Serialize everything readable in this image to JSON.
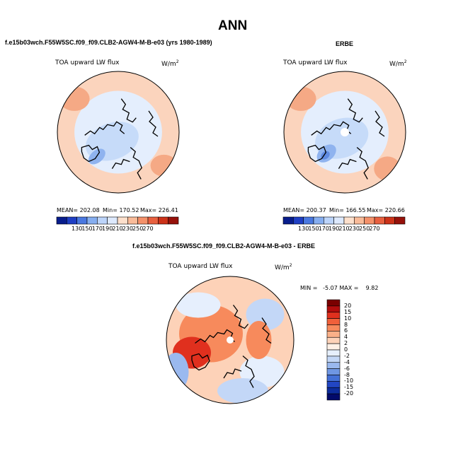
{
  "page_title": "ANN",
  "chart_data": [
    {
      "type": "heatmap",
      "projection": "north polar stereographic",
      "title": "f.e15b03wch.F55W5SC.f09_f09.CLB2-AGW4-M-B-e03 (yrs 1980-1989)",
      "field_label": "TOA upward LW flux",
      "units_label": "W/m",
      "units_superscript": "2",
      "stats": {
        "mean": "MEAN= 202.08",
        "min": "Min= 170.52",
        "max": "Max= 226.41"
      },
      "colorbar": {
        "ticks": [
          "130",
          "150",
          "170",
          "190",
          "210",
          "230",
          "250",
          "270"
        ],
        "colors": [
          "#081d8c",
          "#1f3fc4",
          "#4a78e0",
          "#86aef0",
          "#bcd4fa",
          "#dde9fd",
          "#fde0cc",
          "#f9bb99",
          "#f4916a",
          "#e8603f",
          "#cc3219",
          "#96110a"
        ]
      }
    },
    {
      "type": "heatmap",
      "projection": "north polar stereographic",
      "title": "ERBE",
      "field_label": "TOA upward LW flux",
      "units_label": "W/m",
      "units_superscript": "2",
      "stats": {
        "mean": "MEAN= 200.37",
        "min": "Min= 166.55",
        "max": "Max= 220.66"
      },
      "colorbar": {
        "ticks": [
          "130",
          "150",
          "170",
          "190",
          "210",
          "230",
          "250",
          "270"
        ],
        "colors": [
          "#081d8c",
          "#1f3fc4",
          "#4a78e0",
          "#86aef0",
          "#bcd4fa",
          "#dde9fd",
          "#fde0cc",
          "#f9bb99",
          "#f4916a",
          "#e8603f",
          "#cc3219",
          "#96110a"
        ]
      }
    },
    {
      "type": "heatmap",
      "projection": "north polar stereographic",
      "title": "f.e15b03wch.F55W5SC.f09_f09.CLB2-AGW4-M-B-e03 - ERBE",
      "field_label": "TOA upward LW flux",
      "units_label": "W/m",
      "units_superscript": "2",
      "stats": {
        "min_max": "MIN =   -5.07 MAX =    9.82"
      },
      "colorbar": {
        "orientation": "vertical",
        "ticks": [
          "20",
          "15",
          "10",
          "8",
          "6",
          "4",
          "2",
          "0",
          "-2",
          "-4",
          "-6",
          "-8",
          "-10",
          "-15",
          "-20"
        ],
        "colors": [
          "#7a0000",
          "#b30d0d",
          "#e0301e",
          "#f0603a",
          "#f78a5c",
          "#fab088",
          "#fdd2b8",
          "#fff0e6",
          "#e6effd",
          "#c3d7f7",
          "#9ab9ef",
          "#6f96e3",
          "#4470d6",
          "#2246c3",
          "#0d2c9c",
          "#020a6a"
        ]
      }
    }
  ]
}
